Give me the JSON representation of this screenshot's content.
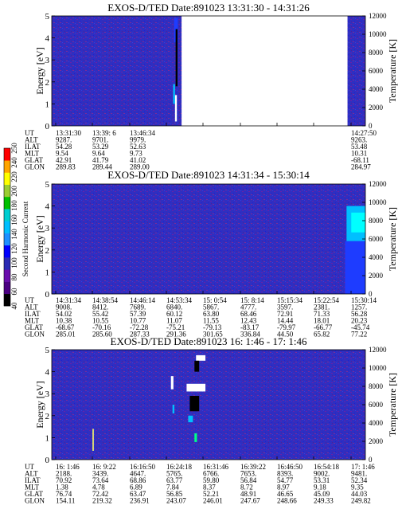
{
  "chart_data": {
    "type": "heatmap",
    "colorbar": {
      "label": "Second Harmonic Current",
      "ticks": [
        "40",
        "60",
        "80",
        "100",
        "120",
        "140",
        "160",
        "180",
        "200",
        "220",
        "240",
        "250"
      ],
      "colors": [
        "#000000",
        "#4b0082",
        "#6a0dad",
        "#2a2ab4",
        "#0000ff",
        "#1e90ff",
        "#00bfff",
        "#00ced1",
        "#00c000",
        "#9acd32",
        "#ffff00",
        "#ffa500",
        "#ff0000"
      ]
    },
    "panels": [
      {
        "title": "EXOS-D/TED   Date:891023  13:31:30 - 14:31:26",
        "ylabel": "Energy [eV]",
        "y2label": "Temperature [K]",
        "ylim": [
          0,
          5
        ],
        "yticks": [
          "0",
          "1",
          "2",
          "3",
          "4",
          "5"
        ],
        "y2lim": [
          0,
          12000
        ],
        "y2ticks": [
          "0",
          "2000",
          "4000",
          "6000",
          "8000",
          "10000",
          "12000"
        ],
        "data_gaps": [
          [
            0.414,
            0.943
          ]
        ],
        "features": [
          {
            "x": 0.39,
            "y": 3.8,
            "w": 0.012,
            "h": 1.1,
            "color": "#1e3cff"
          },
          {
            "x": 0.395,
            "y": 1.8,
            "w": 0.006,
            "h": 2.6,
            "color": "#000000"
          },
          {
            "x": 0.393,
            "y": 0.2,
            "w": 0.006,
            "h": 1.2,
            "color": "#ffffff"
          },
          {
            "x": 0.387,
            "y": 1.0,
            "w": 0.006,
            "h": 0.9,
            "color": "#00bfff"
          }
        ],
        "info_rows": [
          {
            "label": "UT",
            "values": [
              "13:31:30",
              "13:39: 6",
              "13:46:34",
              "",
              "",
              "",
              "",
              "",
              "14:27:50"
            ]
          },
          {
            "label": "ALT",
            "values": [
              "9287.",
              "9701.",
              "9979.",
              "",
              "",
              "",
              "",
              "",
              "9263."
            ]
          },
          {
            "label": "ILAT",
            "values": [
              "54.28",
              "53.29",
              "52.63",
              "",
              "",
              "",
              "",
              "",
              "53.48"
            ]
          },
          {
            "label": "MLT",
            "values": [
              "9.54",
              "9.64",
              "9.73",
              "",
              "",
              "",
              "",
              "",
              "10.31"
            ]
          },
          {
            "label": "GLAT",
            "values": [
              "42.91",
              "41.79",
              "41.02",
              "",
              "",
              "",
              "",
              "",
              "-68.11"
            ]
          },
          {
            "label": "GLON",
            "values": [
              "289.83",
              "289.44",
              "289.00",
              "",
              "",
              "",
              "",
              "",
              "284.97"
            ]
          }
        ]
      },
      {
        "title": "EXOS-D/TED   Date:891023  14:31:34 - 15:30:14",
        "ylabel": "Energy [eV]",
        "y2label": "Temperature [K]",
        "ylim": [
          0,
          5
        ],
        "yticks": [
          "0",
          "1",
          "2",
          "3",
          "4",
          "5"
        ],
        "y2lim": [
          0,
          12000
        ],
        "y2ticks": [
          "0",
          "2000",
          "4000",
          "6000",
          "8000",
          "10000",
          "12000"
        ],
        "data_gaps": [],
        "features": [
          {
            "x": 0.94,
            "y": 2.4,
            "w": 0.06,
            "h": 1.6,
            "color": "#00bfff"
          },
          {
            "x": 0.955,
            "y": 2.8,
            "w": 0.045,
            "h": 0.9,
            "color": "#00ffff"
          },
          {
            "x": 0.935,
            "y": 0.0,
            "w": 0.065,
            "h": 2.4,
            "color": "#1e3cff"
          }
        ],
        "info_rows": [
          {
            "label": "UT",
            "values": [
              "14:31:34",
              "14:38:54",
              "14:46:14",
              "14:53:34",
              "15: 0:54",
              "15: 8:14",
              "15:15:34",
              "15:22:54",
              "15:30:14"
            ]
          },
          {
            "label": "ALT",
            "values": [
              "9008.",
              "8412.",
              "7689.",
              "6840.",
              "5867.",
              "4777.",
              "3597.",
              "2381.",
              "1257."
            ]
          },
          {
            "label": "ILAT",
            "values": [
              "54.02",
              "55.42",
              "57.39",
              "60.12",
              "63.80",
              "68.46",
              "72.91",
              "71.33",
              "56.28"
            ]
          },
          {
            "label": "MLT",
            "values": [
              "10.38",
              "10.55",
              "10.77",
              "11.07",
              "11.55",
              "12.43",
              "14.44",
              "18.01",
              "20.23"
            ]
          },
          {
            "label": "GLAT",
            "values": [
              "-68.67",
              "-70.16",
              "-72.28",
              "-75.21",
              "-79.13",
              "-83.17",
              "-79.97",
              "-66.77",
              "-45.74"
            ]
          },
          {
            "label": "GLON",
            "values": [
              "285.01",
              "285.60",
              "287.33",
              "291.36",
              "301.65",
              "336.84",
              "44.50",
              "65.82",
              "77.22"
            ]
          }
        ]
      },
      {
        "title": "EXOS-D/TED   Date:891023  16: 1:46 - 17: 1:46",
        "ylabel": "Energy [eV]",
        "y2label": "Temperature [K]",
        "ylim": [
          0,
          5
        ],
        "yticks": [
          "0",
          "1",
          "2",
          "3",
          "4",
          "5"
        ],
        "y2lim": [
          0,
          12000
        ],
        "y2ticks": [
          "0",
          "2000",
          "4000",
          "6000",
          "8000",
          "10000",
          "12000"
        ],
        "data_gaps": [],
        "features": [
          {
            "x": 0.46,
            "y": 4.5,
            "w": 0.03,
            "h": 0.25,
            "color": "#ffffff"
          },
          {
            "x": 0.455,
            "y": 4.0,
            "w": 0.015,
            "h": 0.5,
            "color": "#000000"
          },
          {
            "x": 0.43,
            "y": 3.1,
            "w": 0.06,
            "h": 0.35,
            "color": "#ffffff"
          },
          {
            "x": 0.44,
            "y": 2.2,
            "w": 0.03,
            "h": 0.7,
            "color": "#000000"
          },
          {
            "x": 0.435,
            "y": 1.7,
            "w": 0.015,
            "h": 0.3,
            "color": "#00bfff"
          },
          {
            "x": 0.38,
            "y": 3.2,
            "w": 0.008,
            "h": 0.6,
            "color": "#ffffff"
          },
          {
            "x": 0.385,
            "y": 2.1,
            "w": 0.006,
            "h": 0.4,
            "color": "#00bfff"
          },
          {
            "x": 0.455,
            "y": 0.8,
            "w": 0.008,
            "h": 0.4,
            "color": "#00ff88"
          },
          {
            "x": 0.13,
            "y": 0.4,
            "w": 0.004,
            "h": 1.0,
            "color": "#ffff66"
          }
        ],
        "info_rows": [
          {
            "label": "UT",
            "values": [
              "16: 1:46",
              "16: 9:22",
              "16:16:50",
              "16:24:18",
              "16:31:46",
              "16:39:22",
              "16:46:50",
              "16:54:18",
              "17: 1:46"
            ]
          },
          {
            "label": "ALT",
            "values": [
              "2188.",
              "3439.",
              "4647.",
              "5765.",
              "6766.",
              "7653.",
              "8393.",
              "9002.",
              "9481."
            ]
          },
          {
            "label": "ILAT",
            "values": [
              "70.92",
              "73.64",
              "68.86",
              "63.77",
              "59.80",
              "56.84",
              "54.77",
              "53.31",
              "52.34"
            ]
          },
          {
            "label": "MLT",
            "values": [
              "1.38",
              "4.78",
              "6.89",
              "7.84",
              "8.37",
              "8.72",
              "8.97",
              "9.18",
              "9.35"
            ]
          },
          {
            "label": "GLAT",
            "values": [
              "76.74",
              "72.42",
              "63.47",
              "56.85",
              "52.21",
              "48.91",
              "46.65",
              "45.09",
              "44.03"
            ]
          },
          {
            "label": "GLON",
            "values": [
              "154.11",
              "219.32",
              "236.91",
              "243.07",
              "246.01",
              "247.67",
              "248.66",
              "249.33",
              "249.82"
            ]
          }
        ]
      }
    ]
  }
}
